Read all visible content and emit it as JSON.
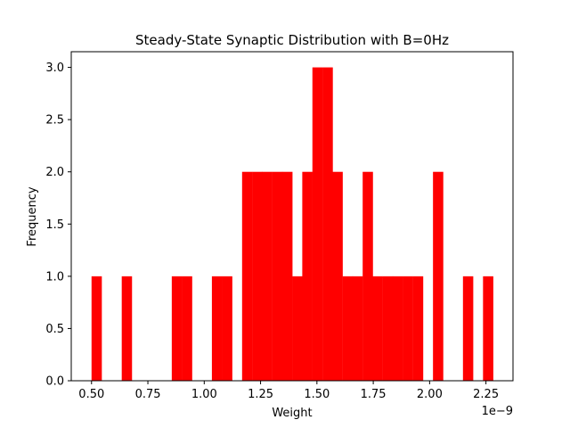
{
  "chart_data": {
    "type": "bar",
    "title": "Steady-State Synaptic Distribution with B=0Hz",
    "xlabel": "Weight",
    "ylabel": "Frequency",
    "x_offset_text": "1e−9",
    "bar_color": "#ff0000",
    "grid": false,
    "xlim": [
      0.41,
      2.37
    ],
    "ylim": [
      0,
      3.15
    ],
    "bin_width": 0.0445,
    "xticks": [
      {
        "value": 0.5,
        "label": "0.50"
      },
      {
        "value": 0.75,
        "label": "0.75"
      },
      {
        "value": 1.0,
        "label": "1.00"
      },
      {
        "value": 1.25,
        "label": "1.25"
      },
      {
        "value": 1.5,
        "label": "1.50"
      },
      {
        "value": 1.75,
        "label": "1.75"
      },
      {
        "value": 2.0,
        "label": "2.00"
      },
      {
        "value": 2.25,
        "label": "2.25"
      }
    ],
    "yticks": [
      {
        "value": 0.0,
        "label": "0.0"
      },
      {
        "value": 0.5,
        "label": "0.5"
      },
      {
        "value": 1.0,
        "label": "1.0"
      },
      {
        "value": 1.5,
        "label": "1.5"
      },
      {
        "value": 2.0,
        "label": "2.0"
      },
      {
        "value": 2.5,
        "label": "2.5"
      },
      {
        "value": 3.0,
        "label": "3.0"
      }
    ],
    "bins": [
      {
        "x": 0.5,
        "count": 1
      },
      {
        "x": 0.544,
        "count": 0
      },
      {
        "x": 0.589,
        "count": 0
      },
      {
        "x": 0.634,
        "count": 1
      },
      {
        "x": 0.678,
        "count": 0
      },
      {
        "x": 0.723,
        "count": 0
      },
      {
        "x": 0.767,
        "count": 0
      },
      {
        "x": 0.812,
        "count": 0
      },
      {
        "x": 0.856,
        "count": 1
      },
      {
        "x": 0.901,
        "count": 1
      },
      {
        "x": 0.945,
        "count": 0
      },
      {
        "x": 0.99,
        "count": 0
      },
      {
        "x": 1.034,
        "count": 1
      },
      {
        "x": 1.079,
        "count": 1
      },
      {
        "x": 1.124,
        "count": 0
      },
      {
        "x": 1.168,
        "count": 2
      },
      {
        "x": 1.213,
        "count": 2
      },
      {
        "x": 1.257,
        "count": 2
      },
      {
        "x": 1.302,
        "count": 2
      },
      {
        "x": 1.346,
        "count": 2
      },
      {
        "x": 1.391,
        "count": 1
      },
      {
        "x": 1.435,
        "count": 2
      },
      {
        "x": 1.48,
        "count": 3
      },
      {
        "x": 1.525,
        "count": 3
      },
      {
        "x": 1.569,
        "count": 2
      },
      {
        "x": 1.614,
        "count": 1
      },
      {
        "x": 1.658,
        "count": 1
      },
      {
        "x": 1.703,
        "count": 2
      },
      {
        "x": 1.747,
        "count": 1
      },
      {
        "x": 1.792,
        "count": 1
      },
      {
        "x": 1.836,
        "count": 1
      },
      {
        "x": 1.881,
        "count": 1
      },
      {
        "x": 1.926,
        "count": 1
      },
      {
        "x": 1.97,
        "count": 0
      },
      {
        "x": 2.015,
        "count": 2
      },
      {
        "x": 2.059,
        "count": 0
      },
      {
        "x": 2.104,
        "count": 0
      },
      {
        "x": 2.148,
        "count": 1
      },
      {
        "x": 2.193,
        "count": 0
      },
      {
        "x": 2.237,
        "count": 1
      }
    ]
  }
}
